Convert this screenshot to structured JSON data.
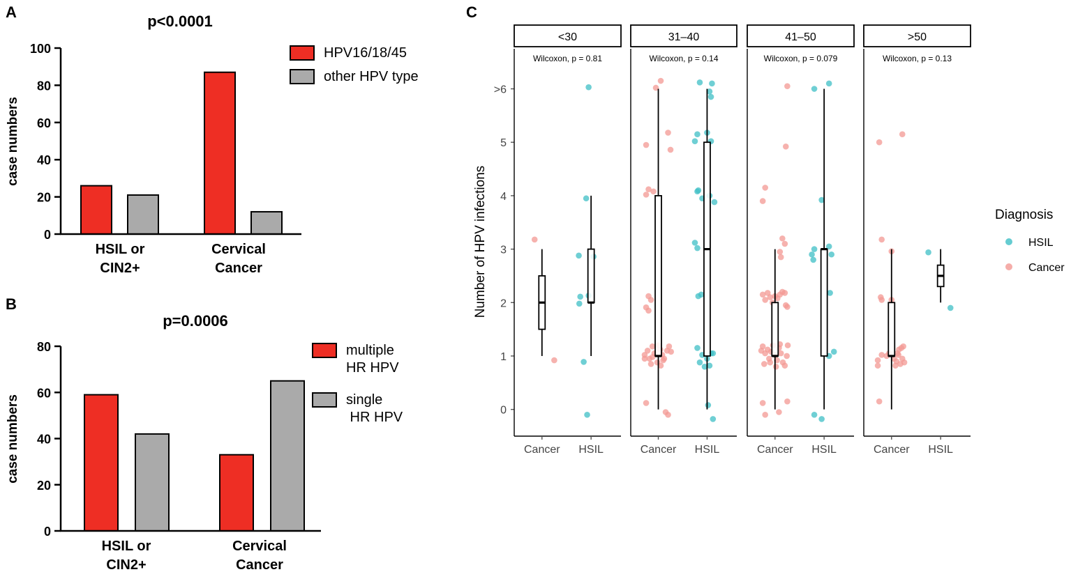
{
  "colors": {
    "red": "#ee2e24",
    "gray": "#aaaaaa",
    "hsil": "#3fbfc6",
    "cancer": "#f39893"
  },
  "chart_data": [
    {
      "panel": "A",
      "type": "bar",
      "title": "p<0.0001",
      "ylabel": "case numbers",
      "ylim": [
        0,
        100
      ],
      "yticks": [
        0,
        20,
        40,
        60,
        80,
        100
      ],
      "categories": [
        [
          "HSIL or",
          "CIN2+"
        ],
        [
          "Cervical",
          "Cancer"
        ]
      ],
      "series": [
        {
          "name": "HPV16/18/45",
          "name_lines": [
            "HPV16/18/45"
          ],
          "color": "red",
          "values": [
            26,
            87
          ]
        },
        {
          "name": "other HPV type",
          "name_lines": [
            "other HPV type"
          ],
          "color": "gray",
          "values": [
            21,
            12
          ]
        }
      ],
      "legend": "top-right"
    },
    {
      "panel": "B",
      "type": "bar",
      "title": "p=0.0006",
      "ylabel": "case numbers",
      "ylim": [
        0,
        80
      ],
      "yticks": [
        0,
        20,
        40,
        60,
        80
      ],
      "categories": [
        [
          "HSIL or",
          "CIN2+"
        ],
        [
          "Cervical",
          "Cancer"
        ]
      ],
      "series": [
        {
          "name": "multiple HR HPV",
          "name_lines": [
            "multiple",
            "HR HPV"
          ],
          "color": "red",
          "values": [
            59,
            33
          ]
        },
        {
          "name": "single HR HPV",
          "name_lines": [
            "single",
            " HR HPV"
          ],
          "color": "gray",
          "values": [
            42,
            65
          ]
        }
      ],
      "legend": "top-right"
    },
    {
      "panel": "C",
      "type": "scatter",
      "subtype": "faceted boxplot with jittered points",
      "ylabel": "Number of HPV infections",
      "ylim": [
        -0.5,
        6.75
      ],
      "yticks": [
        0,
        1,
        2,
        3,
        4,
        5,
        6
      ],
      "yticklabels": [
        "0",
        "1",
        "2",
        "3",
        "4",
        "5",
        ">6"
      ],
      "groups": [
        "Cancer",
        "HSIL"
      ],
      "legend_title": "Diagnosis",
      "legend": [
        {
          "label": "HSIL",
          "color": "hsil"
        },
        {
          "label": "Cancer",
          "color": "cancer"
        }
      ],
      "facets": [
        {
          "label": "<30",
          "stat": "Wilcoxon, p = 0.81",
          "boxes": {
            "Cancer": {
              "q1": 1.5,
              "median": 2,
              "q3": 2.5,
              "min": 1,
              "max": 3
            },
            "HSIL": {
              "q1": 2,
              "median": 2,
              "q3": 3,
              "min": 1,
              "max": 4
            }
          },
          "points": {
            "Cancer": [
              [
                -0.15,
                3.18
              ],
              [
                0.25,
                0.92
              ]
            ],
            "HSIL": [
              [
                -0.25,
                2.88
              ],
              [
                -0.22,
                2.11
              ],
              [
                -0.24,
                1.98
              ],
              [
                -0.05,
                2.13
              ],
              [
                -0.15,
                0.89
              ],
              [
                -0.1,
                3.95
              ],
              [
                -0.05,
                6.03
              ],
              [
                0.05,
                2.86
              ],
              [
                -0.08,
                -0.1
              ]
            ]
          }
        },
        {
          "label": "31–40",
          "stat": "Wilcoxon, p = 0.14",
          "boxes": {
            "Cancer": {
              "q1": 1,
              "median": 1,
              "q3": 4,
              "min": 0,
              "max": 6
            },
            "HSIL": {
              "q1": 1,
              "median": 3,
              "q3": 5,
              "min": 0,
              "max": 6
            }
          },
          "points": {
            "Cancer": [
              [
                -0.25,
                4.02
              ],
              [
                -0.2,
                4.12
              ],
              [
                -0.1,
                4.08
              ],
              [
                -0.25,
                4.95
              ],
              [
                0.2,
                5.18
              ],
              [
                0.25,
                4.86
              ],
              [
                0.05,
                6.15
              ],
              [
                -0.05,
                6.02
              ],
              [
                -0.2,
                2.12
              ],
              [
                -0.15,
                2.05
              ],
              [
                -0.25,
                1.91
              ],
              [
                -0.2,
                1.85
              ],
              [
                -0.28,
                1.02
              ],
              [
                -0.22,
                1.1
              ],
              [
                -0.18,
                0.95
              ],
              [
                -0.12,
                1.18
              ],
              [
                -0.08,
                1.05
              ],
              [
                -0.02,
                0.88
              ],
              [
                0.04,
                1.12
              ],
              [
                0.08,
                1.02
              ],
              [
                0.12,
                0.95
              ],
              [
                0.18,
                1.1
              ],
              [
                0.22,
                1.18
              ],
              [
                0.26,
                1.08
              ],
              [
                -0.15,
                0.85
              ],
              [
                0.1,
                0.92
              ],
              [
                0.15,
                -0.05
              ],
              [
                0.2,
                -0.1
              ],
              [
                -0.25,
                0.12
              ],
              [
                -0.28,
                0.95
              ],
              [
                0.0,
                1.2
              ],
              [
                -0.12,
                0.98
              ],
              [
                0.05,
                0.82
              ]
            ],
            "HSIL": [
              [
                -0.2,
                5.15
              ],
              [
                -0.25,
                5.02
              ],
              [
                0.0,
                5.18
              ],
              [
                0.08,
                5.02
              ],
              [
                0.05,
                5.95
              ],
              [
                0.1,
                6.1
              ],
              [
                -0.15,
                6.12
              ],
              [
                0.08,
                5.85
              ],
              [
                -0.2,
                4.08
              ],
              [
                -0.18,
                4.1
              ],
              [
                -0.1,
                3.95
              ],
              [
                0.05,
                4.0
              ],
              [
                0.15,
                3.88
              ],
              [
                -0.25,
                3.12
              ],
              [
                -0.2,
                3.02
              ],
              [
                -0.18,
                2.12
              ],
              [
                -0.12,
                2.15
              ],
              [
                -0.2,
                1.15
              ],
              [
                -0.1,
                1.02
              ],
              [
                0.0,
                0.95
              ],
              [
                0.05,
                0.82
              ],
              [
                0.12,
                1.05
              ],
              [
                -0.15,
                0.88
              ],
              [
                0.08,
                1.05
              ],
              [
                -0.05,
                0.8
              ],
              [
                0.02,
                0.08
              ],
              [
                0.12,
                -0.18
              ]
            ]
          }
        },
        {
          "label": "41–50",
          "stat": "Wilcoxon, p = 0.079",
          "boxes": {
            "Cancer": {
              "q1": 1,
              "median": 1,
              "q3": 2,
              "min": 0,
              "max": 3
            },
            "HSIL": {
              "q1": 1,
              "median": 3,
              "q3": 3,
              "min": 0,
              "max": 6
            }
          },
          "points": {
            "Cancer": [
              [
                -0.2,
                4.15
              ],
              [
                -0.25,
                3.9
              ],
              [
                0.22,
                4.92
              ],
              [
                0.25,
                6.05
              ],
              [
                0.15,
                3.2
              ],
              [
                0.2,
                3.1
              ],
              [
                0.1,
                2.95
              ],
              [
                0.12,
                2.85
              ],
              [
                -0.25,
                2.15
              ],
              [
                -0.2,
                2.05
              ],
              [
                -0.15,
                2.18
              ],
              [
                -0.1,
                2.1
              ],
              [
                -0.05,
                2.0
              ],
              [
                0.0,
                2.12
              ],
              [
                0.05,
                2.08
              ],
              [
                0.1,
                2.15
              ],
              [
                0.15,
                2.2
              ],
              [
                0.2,
                2.18
              ],
              [
                0.25,
                1.92
              ],
              [
                0.22,
                1.95
              ],
              [
                -0.28,
                1.1
              ],
              [
                -0.25,
                1.18
              ],
              [
                -0.2,
                1.05
              ],
              [
                -0.15,
                1.12
              ],
              [
                -0.12,
                0.95
              ],
              [
                -0.08,
                1.08
              ],
              [
                -0.04,
                1.2
              ],
              [
                0.0,
                1.02
              ],
              [
                0.04,
                0.92
              ],
              [
                0.08,
                1.15
              ],
              [
                0.12,
                1.05
              ],
              [
                0.16,
                0.88
              ],
              [
                0.2,
                0.82
              ],
              [
                0.24,
                1.0
              ],
              [
                0.26,
                1.2
              ],
              [
                -0.22,
                0.85
              ],
              [
                0.02,
                0.8
              ],
              [
                -0.25,
                0.12
              ],
              [
                -0.2,
                -0.1
              ],
              [
                0.08,
                -0.05
              ],
              [
                0.25,
                0.15
              ],
              [
                -0.1,
                0.88
              ],
              [
                0.1,
                1.22
              ]
            ],
            "HSIL": [
              [
                -0.2,
                6.0
              ],
              [
                0.1,
                6.1
              ],
              [
                -0.2,
                3.0
              ],
              [
                -0.25,
                2.9
              ],
              [
                -0.22,
                2.8
              ],
              [
                0.1,
                3.05
              ],
              [
                0.15,
                2.9
              ],
              [
                -0.05,
                3.92
              ],
              [
                0.12,
                2.18
              ],
              [
                0.1,
                1.0
              ],
              [
                0.2,
                1.08
              ],
              [
                -0.2,
                -0.1
              ],
              [
                -0.05,
                -0.18
              ]
            ]
          }
        },
        {
          "label": ">50",
          "stat": "Wilcoxon, p = 0.13",
          "boxes": {
            "Cancer": {
              "q1": 1,
              "median": 1,
              "q3": 2,
              "min": 0,
              "max": 3
            },
            "HSIL": {
              "q1": 2.3,
              "median": 2.5,
              "q3": 2.7,
              "min": 2,
              "max": 3
            }
          },
          "points": {
            "Cancer": [
              [
                -0.25,
                5.0
              ],
              [
                0.22,
                5.15
              ],
              [
                -0.2,
                3.18
              ],
              [
                0.0,
                2.96
              ],
              [
                -0.22,
                2.1
              ],
              [
                -0.2,
                2.05
              ],
              [
                0.0,
                2.05
              ],
              [
                -0.28,
                0.92
              ],
              [
                -0.28,
                0.82
              ],
              [
                -0.2,
                1.02
              ],
              [
                -0.1,
                1.0
              ],
              [
                -0.05,
                1.05
              ],
              [
                0.05,
                0.95
              ],
              [
                0.1,
                0.9
              ],
              [
                0.12,
                1.05
              ],
              [
                0.15,
                1.12
              ],
              [
                0.18,
                0.85
              ],
              [
                0.2,
                1.15
              ],
              [
                0.24,
                1.18
              ],
              [
                0.26,
                0.88
              ],
              [
                0.08,
                0.82
              ],
              [
                -0.25,
                0.15
              ],
              [
                0.14,
                1.02
              ],
              [
                0.22,
                0.95
              ]
            ],
            "HSIL": [
              [
                -0.25,
                2.94
              ],
              [
                0.2,
                1.9
              ]
            ]
          }
        }
      ]
    }
  ]
}
